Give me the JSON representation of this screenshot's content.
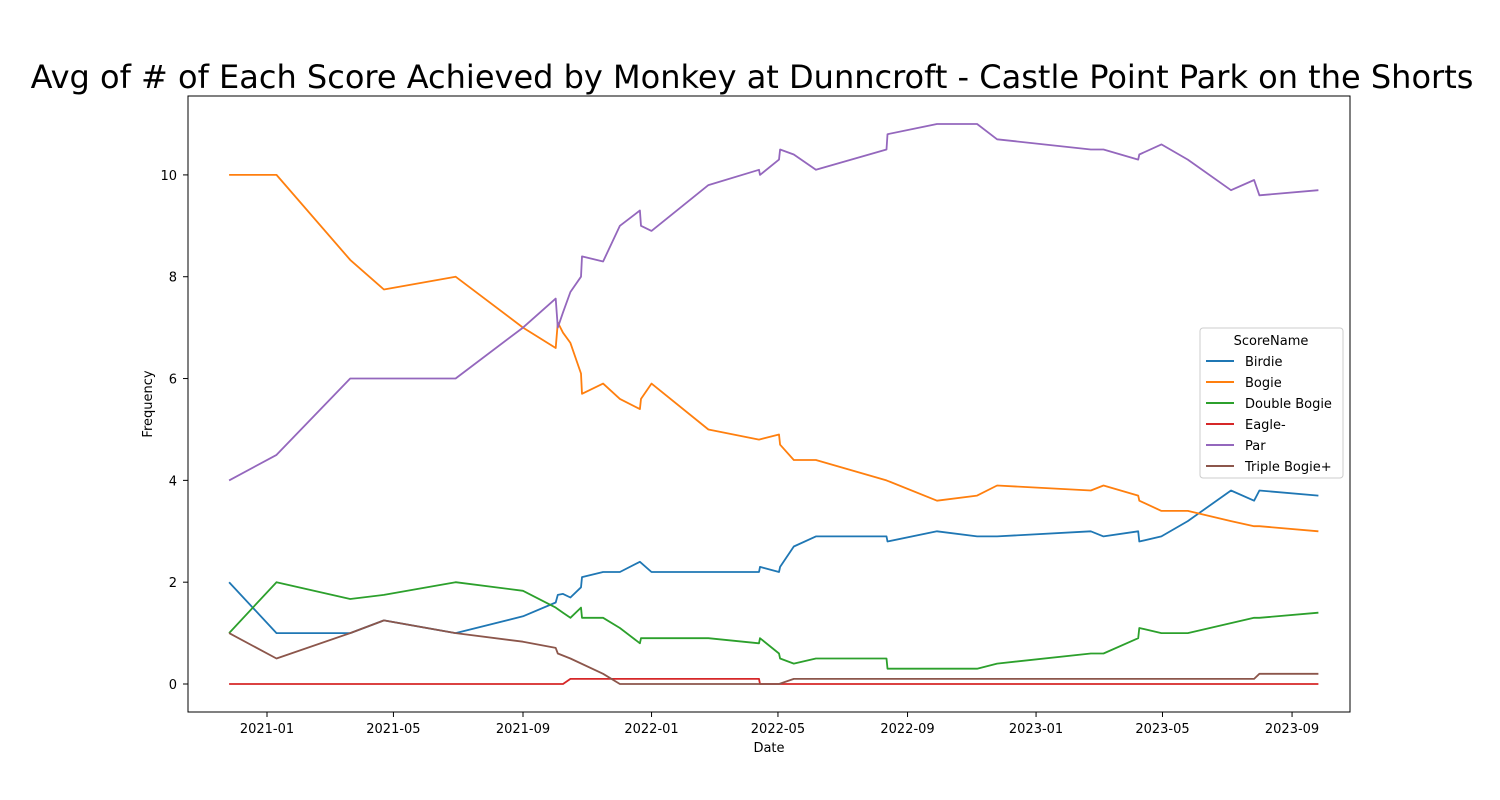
{
  "chart_data": {
    "type": "line",
    "title": "Avg of # of Each Score Achieved by Monkey at Dunncroft - Castle Point Park on the Shorts",
    "xlabel": "Date",
    "ylabel": "Frequency",
    "xlim": [
      "2020-10-18",
      "2023-10-26"
    ],
    "ylim": [
      -0.55,
      11.55
    ],
    "x_ticks": [
      "2021-01-01",
      "2021-05-01",
      "2021-09-01",
      "2022-01-01",
      "2022-05-01",
      "2022-09-01",
      "2023-01-01",
      "2023-05-01",
      "2023-09-01"
    ],
    "x_tick_labels": [
      "2021-01",
      "2021-05",
      "2021-09",
      "2022-01",
      "2022-05",
      "2022-09",
      "2023-01",
      "2023-05",
      "2023-09"
    ],
    "y_ticks": [
      0,
      2,
      4,
      6,
      8,
      10
    ],
    "y_tick_labels": [
      "0",
      "2",
      "4",
      "6",
      "8",
      "10"
    ],
    "grid": false,
    "legend": {
      "title": "ScoreName",
      "placement": "center-right"
    },
    "series": [
      {
        "name": "Birdie",
        "color": "#1f77b4",
        "points": [
          [
            "2020-11-26",
            2.0
          ],
          [
            "2021-01-10",
            1.0
          ],
          [
            "2021-03-21",
            1.0
          ],
          [
            "2021-04-22",
            1.25
          ],
          [
            "2021-06-29",
            1.0
          ],
          [
            "2021-09-01",
            1.33
          ],
          [
            "2021-10-02",
            1.6
          ],
          [
            "2021-10-04",
            1.75
          ],
          [
            "2021-10-09",
            1.77
          ],
          [
            "2021-10-16",
            1.7
          ],
          [
            "2021-10-26",
            1.9
          ],
          [
            "2021-10-27",
            2.1
          ],
          [
            "2021-11-16",
            2.2
          ],
          [
            "2021-12-02",
            2.2
          ],
          [
            "2021-12-21",
            2.4
          ],
          [
            "2022-01-01",
            2.2
          ],
          [
            "2022-02-24",
            2.2
          ],
          [
            "2022-04-13",
            2.2
          ],
          [
            "2022-04-14",
            2.3
          ],
          [
            "2022-05-02",
            2.2
          ],
          [
            "2022-05-03",
            2.3
          ],
          [
            "2022-05-16",
            2.7
          ],
          [
            "2022-06-06",
            2.9
          ],
          [
            "2022-08-12",
            2.9
          ],
          [
            "2022-08-13",
            2.8
          ],
          [
            "2022-09-29",
            3.0
          ],
          [
            "2022-11-06",
            2.9
          ],
          [
            "2022-11-25",
            2.9
          ],
          [
            "2023-02-22",
            3.0
          ],
          [
            "2023-03-06",
            2.9
          ],
          [
            "2023-04-08",
            3.0
          ],
          [
            "2023-04-09",
            2.8
          ],
          [
            "2023-04-30",
            2.9
          ],
          [
            "2023-05-25",
            3.2
          ],
          [
            "2023-07-05",
            3.8
          ],
          [
            "2023-07-27",
            3.6
          ],
          [
            "2023-08-01",
            3.8
          ],
          [
            "2023-09-26",
            3.7
          ]
        ]
      },
      {
        "name": "Bogie",
        "color": "#ff7f0e",
        "points": [
          [
            "2020-11-26",
            10.0
          ],
          [
            "2021-01-10",
            10.0
          ],
          [
            "2021-03-21",
            8.33
          ],
          [
            "2021-04-22",
            7.75
          ],
          [
            "2021-06-29",
            8.0
          ],
          [
            "2021-09-01",
            7.0
          ],
          [
            "2021-10-02",
            6.6
          ],
          [
            "2021-10-04",
            7.1
          ],
          [
            "2021-10-09",
            6.9
          ],
          [
            "2021-10-16",
            6.7
          ],
          [
            "2021-10-26",
            6.1
          ],
          [
            "2021-10-27",
            5.7
          ],
          [
            "2021-11-16",
            5.9
          ],
          [
            "2021-12-02",
            5.6
          ],
          [
            "2021-12-21",
            5.4
          ],
          [
            "2021-12-22",
            5.6
          ],
          [
            "2022-01-01",
            5.9
          ],
          [
            "2022-02-24",
            5.0
          ],
          [
            "2022-04-13",
            4.8
          ],
          [
            "2022-05-02",
            4.9
          ],
          [
            "2022-05-03",
            4.7
          ],
          [
            "2022-05-16",
            4.4
          ],
          [
            "2022-06-06",
            4.4
          ],
          [
            "2022-08-12",
            4.0
          ],
          [
            "2022-09-29",
            3.6
          ],
          [
            "2022-11-06",
            3.7
          ],
          [
            "2022-11-25",
            3.9
          ],
          [
            "2023-02-22",
            3.8
          ],
          [
            "2023-03-06",
            3.9
          ],
          [
            "2023-04-08",
            3.7
          ],
          [
            "2023-04-09",
            3.6
          ],
          [
            "2023-04-30",
            3.4
          ],
          [
            "2023-05-25",
            3.4
          ],
          [
            "2023-07-05",
            3.2
          ],
          [
            "2023-07-27",
            3.1
          ],
          [
            "2023-08-01",
            3.1
          ],
          [
            "2023-09-26",
            3.0
          ]
        ]
      },
      {
        "name": "Double Bogie",
        "color": "#2ca02c",
        "points": [
          [
            "2020-11-26",
            1.0
          ],
          [
            "2021-01-10",
            2.0
          ],
          [
            "2021-03-21",
            1.67
          ],
          [
            "2021-04-22",
            1.75
          ],
          [
            "2021-06-29",
            2.0
          ],
          [
            "2021-09-01",
            1.83
          ],
          [
            "2021-10-02",
            1.5
          ],
          [
            "2021-10-09",
            1.4
          ],
          [
            "2021-10-16",
            1.3
          ],
          [
            "2021-10-26",
            1.5
          ],
          [
            "2021-10-27",
            1.3
          ],
          [
            "2021-11-16",
            1.3
          ],
          [
            "2021-12-02",
            1.1
          ],
          [
            "2021-12-21",
            0.8
          ],
          [
            "2021-12-22",
            0.9
          ],
          [
            "2022-02-24",
            0.9
          ],
          [
            "2022-04-13",
            0.8
          ],
          [
            "2022-04-14",
            0.9
          ],
          [
            "2022-05-02",
            0.6
          ],
          [
            "2022-05-03",
            0.5
          ],
          [
            "2022-05-16",
            0.4
          ],
          [
            "2022-06-06",
            0.5
          ],
          [
            "2022-08-12",
            0.5
          ],
          [
            "2022-08-13",
            0.3
          ],
          [
            "2022-11-06",
            0.3
          ],
          [
            "2022-11-25",
            0.4
          ],
          [
            "2023-02-22",
            0.6
          ],
          [
            "2023-03-06",
            0.6
          ],
          [
            "2023-04-08",
            0.9
          ],
          [
            "2023-04-09",
            1.1
          ],
          [
            "2023-04-30",
            1.0
          ],
          [
            "2023-05-25",
            1.0
          ],
          [
            "2023-07-27",
            1.3
          ],
          [
            "2023-08-01",
            1.3
          ],
          [
            "2023-09-26",
            1.4
          ]
        ]
      },
      {
        "name": "Eagle-",
        "color": "#d62728",
        "points": [
          [
            "2020-11-26",
            0.0
          ],
          [
            "2021-10-09",
            0.0
          ],
          [
            "2021-10-16",
            0.1
          ],
          [
            "2022-04-13",
            0.1
          ],
          [
            "2022-04-14",
            0.0
          ],
          [
            "2023-09-26",
            0.0
          ]
        ]
      },
      {
        "name": "Par",
        "color": "#9467bd",
        "points": [
          [
            "2020-11-26",
            4.0
          ],
          [
            "2021-01-10",
            4.5
          ],
          [
            "2021-03-21",
            6.0
          ],
          [
            "2021-06-29",
            6.0
          ],
          [
            "2021-09-01",
            7.0
          ],
          [
            "2021-10-02",
            7.57
          ],
          [
            "2021-10-04",
            7.0
          ],
          [
            "2021-10-09",
            7.3
          ],
          [
            "2021-10-16",
            7.7
          ],
          [
            "2021-10-26",
            8.0
          ],
          [
            "2021-10-27",
            8.4
          ],
          [
            "2021-11-16",
            8.3
          ],
          [
            "2021-12-02",
            9.0
          ],
          [
            "2021-12-21",
            9.3
          ],
          [
            "2021-12-22",
            9.0
          ],
          [
            "2022-01-01",
            8.9
          ],
          [
            "2022-02-24",
            9.8
          ],
          [
            "2022-04-13",
            10.1
          ],
          [
            "2022-04-14",
            10.0
          ],
          [
            "2022-05-02",
            10.3
          ],
          [
            "2022-05-03",
            10.5
          ],
          [
            "2022-05-16",
            10.4
          ],
          [
            "2022-06-06",
            10.1
          ],
          [
            "2022-08-12",
            10.5
          ],
          [
            "2022-08-13",
            10.8
          ],
          [
            "2022-09-29",
            11.0
          ],
          [
            "2022-11-06",
            11.0
          ],
          [
            "2022-11-25",
            10.7
          ],
          [
            "2023-02-22",
            10.5
          ],
          [
            "2023-03-06",
            10.5
          ],
          [
            "2023-04-08",
            10.3
          ],
          [
            "2023-04-09",
            10.4
          ],
          [
            "2023-04-30",
            10.6
          ],
          [
            "2023-05-25",
            10.3
          ],
          [
            "2023-07-05",
            9.7
          ],
          [
            "2023-07-27",
            9.9
          ],
          [
            "2023-08-01",
            9.6
          ],
          [
            "2023-09-26",
            9.7
          ]
        ]
      },
      {
        "name": "Triple Bogie+",
        "color": "#8c564b",
        "points": [
          [
            "2020-11-26",
            1.0
          ],
          [
            "2021-01-10",
            0.5
          ],
          [
            "2021-03-21",
            1.0
          ],
          [
            "2021-04-22",
            1.25
          ],
          [
            "2021-06-29",
            1.0
          ],
          [
            "2021-09-01",
            0.83
          ],
          [
            "2021-10-02",
            0.71
          ],
          [
            "2021-10-04",
            0.6
          ],
          [
            "2021-10-16",
            0.5
          ],
          [
            "2021-11-16",
            0.2
          ],
          [
            "2021-12-02",
            0.0
          ],
          [
            "2022-05-02",
            0.0
          ],
          [
            "2022-05-16",
            0.1
          ],
          [
            "2023-07-27",
            0.1
          ],
          [
            "2023-08-01",
            0.2
          ],
          [
            "2023-09-26",
            0.2
          ]
        ]
      }
    ]
  }
}
